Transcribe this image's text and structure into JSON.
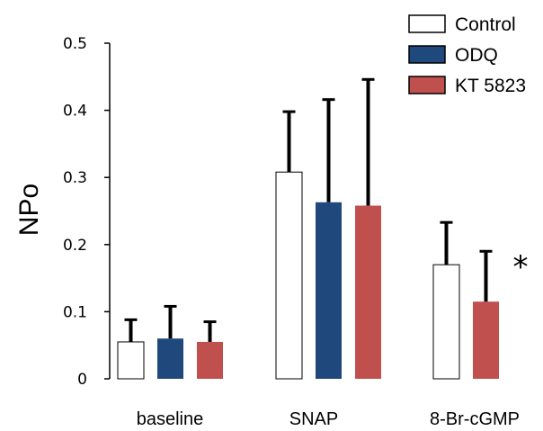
{
  "chart_data": {
    "type": "bar",
    "ylabel": "NPo",
    "xlabel": "",
    "ylim": [
      0,
      0.5
    ],
    "yticks": [
      {
        "value": 0,
        "label": "0"
      },
      {
        "value": 0.1,
        "label": "0.1"
      },
      {
        "value": 0.2,
        "label": "0.2"
      },
      {
        "value": 0.3,
        "label": "0.3"
      },
      {
        "value": 0.4,
        "label": "0.4"
      },
      {
        "value": 0.5,
        "label": "0.5"
      }
    ],
    "categories": [
      "baseline",
      "SNAP",
      "8-Br-cGMP"
    ],
    "series": [
      {
        "name": "Control",
        "color": "#ffffff",
        "values": [
          0.055,
          0.308,
          0.17
        ],
        "errors": [
          0.033,
          0.09,
          0.063
        ]
      },
      {
        "name": "ODQ",
        "color": "#1f497d",
        "values": [
          0.06,
          0.263,
          null
        ],
        "errors": [
          0.048,
          0.153,
          null
        ]
      },
      {
        "name": "KT 5823",
        "color": "#c0504d",
        "values": [
          0.055,
          0.258,
          0.115
        ],
        "errors": [
          0.03,
          0.188,
          0.075
        ]
      }
    ],
    "annotations": [
      {
        "text": "*",
        "category": "8-Br-cGMP",
        "series": "KT 5823"
      }
    ],
    "legend_position": "top-right",
    "grid": false
  }
}
